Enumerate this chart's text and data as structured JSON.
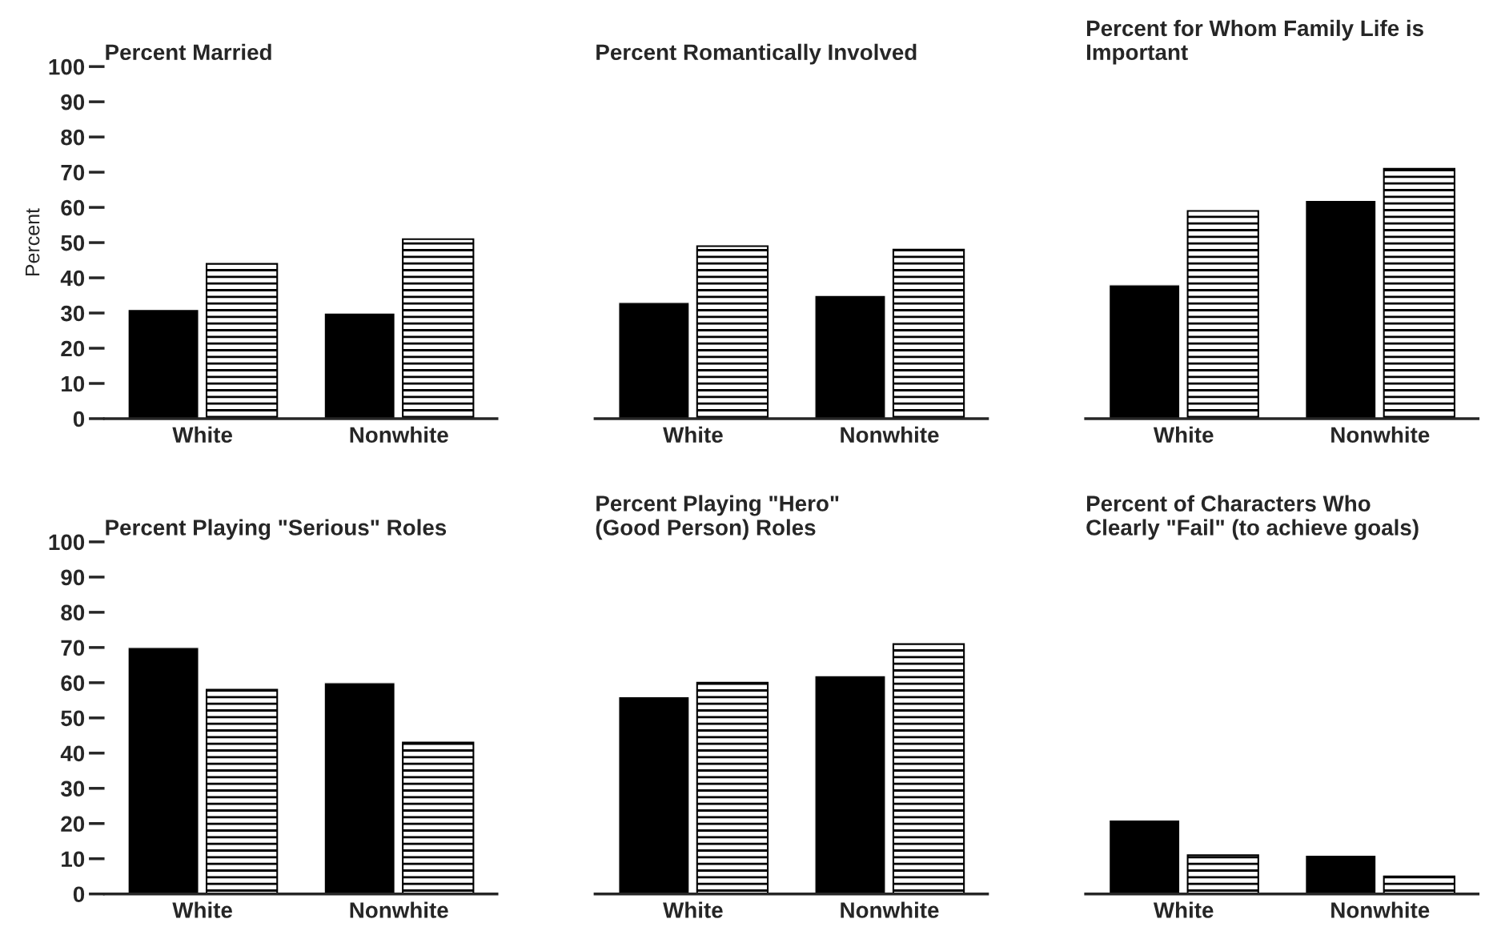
{
  "chart_data": [
    {
      "type": "bar",
      "title": "Percent Married",
      "ylabel": "Percent",
      "categories": [
        "White",
        "Nonwhite"
      ],
      "ylim": [
        0,
        100
      ],
      "yticks": [
        0,
        10,
        20,
        30,
        40,
        50,
        60,
        70,
        80,
        90,
        100
      ],
      "grid": false,
      "legend": false,
      "series": [
        {
          "color": "#000000",
          "values": [
            31,
            30
          ]
        },
        {
          "color": "#000000",
          "values": [
            44,
            51
          ]
        }
      ]
    },
    {
      "type": "bar",
      "title": "Percent Romantically Involved",
      "categories": [
        "White",
        "Nonwhite"
      ],
      "ylim": [
        0,
        100
      ],
      "yticks": [
        0,
        10,
        20,
        30,
        40,
        50,
        60,
        70,
        80,
        90,
        100
      ],
      "grid": false,
      "legend": false,
      "tick_labels": "x",
      "series": [
        {
          "color": "#000000",
          "values": [
            33,
            35
          ]
        },
        {
          "color": "#000000",
          "values": [
            49,
            48
          ]
        }
      ]
    },
    {
      "type": "bar",
      "title": "Percent for Whom Family Life is\nImportant",
      "categories": [
        "White",
        "Nonwhite"
      ],
      "ylim": [
        0,
        100
      ],
      "yticks": [
        0,
        10,
        20,
        30,
        40,
        50,
        60,
        70,
        80,
        90,
        100
      ],
      "grid": false,
      "legend": false,
      "tick_labels": "x",
      "series": [
        {
          "color": "#000000",
          "values": [
            38,
            62
          ]
        },
        {
          "color": "#000000",
          "values": [
            59,
            71
          ]
        }
      ]
    },
    {
      "type": "bar",
      "title": "Percent Playing \"Serious\" Roles",
      "categories": [
        "White",
        "Nonwhite"
      ],
      "ylim": [
        0,
        100
      ],
      "yticks": [
        0,
        10,
        20,
        30,
        40,
        50,
        60,
        70,
        80,
        90,
        100
      ],
      "grid": false,
      "legend": false,
      "series": [
        {
          "color": "#000000",
          "values": [
            70,
            60
          ]
        },
        {
          "color": "#000000",
          "values": [
            58,
            43
          ]
        }
      ]
    },
    {
      "type": "bar",
      "title": "Percent Playing \"Hero\"\n(Good Person) Roles",
      "categories": [
        "White",
        "Nonwhite"
      ],
      "ylim": [
        0,
        100
      ],
      "yticks": [
        0,
        10,
        20,
        30,
        40,
        50,
        60,
        70,
        80,
        90,
        100
      ],
      "grid": false,
      "legend": false,
      "tick_labels": "x",
      "series": [
        {
          "color": "#000000",
          "values": [
            56,
            62
          ]
        },
        {
          "color": "#000000",
          "values": [
            60,
            71
          ]
        }
      ]
    },
    {
      "type": "bar",
      "title": "Percent of Characters Who\nClearly \"Fail\" (to achieve goals)",
      "categories": [
        "White",
        "Nonwhite"
      ],
      "ylim": [
        0,
        100
      ],
      "yticks": [
        0,
        10,
        20,
        30,
        40,
        50,
        60,
        70,
        80,
        90,
        100
      ],
      "grid": false,
      "legend": false,
      "tick_labels": "x",
      "series": [
        {
          "color": "#000000",
          "values": [
            21,
            11
          ]
        },
        {
          "color": "#000000",
          "values": [
            11,
            5
          ]
        }
      ]
    }
  ]
}
